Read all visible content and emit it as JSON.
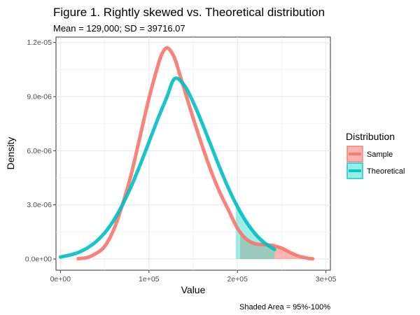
{
  "chart_data": {
    "type": "line",
    "title": "Figure 1. Rightly skewed vs. Theoretical distribution",
    "subtitle": "Mean = 129,000; SD = 39716.07",
    "xlabel": "Value",
    "ylabel": "Density",
    "caption": "Shaded Area = 95%-100%",
    "xlim": [
      -5000,
      305000
    ],
    "ylim": [
      -6.2e-07,
      1.23e-05
    ],
    "x_ticks": [
      0,
      100000,
      200000,
      300000
    ],
    "x_tick_labels": [
      "0e+00",
      "1e+05",
      "2e+05",
      "3e+05"
    ],
    "y_ticks": [
      0,
      3e-06,
      6e-06,
      9e-06,
      1.2e-05
    ],
    "y_tick_labels": [
      "0.0e+00",
      "3.0e-06",
      "6.0e-06",
      "9.0e-06",
      "1.2e-05"
    ],
    "grid": true,
    "legend": {
      "title": "Distribution",
      "placement": "right",
      "entries": [
        "Sample",
        "Theoretical"
      ]
    },
    "series": [
      {
        "name": "Sample",
        "color": "#f8766d",
        "x": [
          20000,
          30000,
          40000,
          50000,
          60000,
          70000,
          80000,
          90000,
          100000,
          110000,
          115000,
          120000,
          125000,
          130000,
          135000,
          140000,
          150000,
          160000,
          170000,
          180000,
          190000,
          200000,
          210000,
          220000,
          230000,
          240000,
          250000,
          260000,
          270000,
          280000,
          285000
        ],
        "y": [
          2e-08,
          8e-08,
          3e-07,
          7e-07,
          1.6e-06,
          3e-06,
          4.7e-06,
          6.8e-06,
          8.9e-06,
          1.07e-05,
          1.14e-05,
          1.17e-05,
          1.15e-05,
          1.1e-05,
          1.02e-05,
          9.4e-06,
          7.8e-06,
          6.3e-06,
          4.9e-06,
          3.7e-06,
          2.7e-06,
          1.7e-06,
          1.1e-06,
          8.5e-07,
          8e-07,
          7.5e-07,
          6e-07,
          3.5e-07,
          1.5e-07,
          4e-08,
          1e-08
        ]
      },
      {
        "name": "Theoretical",
        "color": "#00bfc4",
        "x": [
          0,
          10000,
          20000,
          30000,
          40000,
          50000,
          60000,
          70000,
          80000,
          90000,
          100000,
          110000,
          120000,
          129000,
          140000,
          150000,
          160000,
          170000,
          180000,
          190000,
          200000,
          210000,
          220000,
          230000,
          242000
        ],
        "y": [
          1.1e-07,
          2.1e-07,
          3.6e-07,
          6e-07,
          9.5e-07,
          1.45e-06,
          2.13e-06,
          3e-06,
          4.03e-06,
          5.21e-06,
          6.48e-06,
          7.76e-06,
          8.94e-06,
          1e-05,
          9.62e-06,
          8.69e-06,
          7.54e-06,
          6.3e-06,
          5.06e-06,
          3.9e-06,
          2.9e-06,
          2.06e-06,
          1.4e-06,
          9.2e-07,
          5.3e-07
        ]
      }
    ],
    "shaded_area": {
      "sample": {
        "x": [
          203000,
          210000,
          220000,
          230000,
          240000,
          245000,
          250000,
          260000,
          270000,
          280000,
          285000
        ],
        "y": [
          1.55e-06,
          1.1e-06,
          8.5e-07,
          8e-07,
          7.5e-07,
          7e-07,
          6e-07,
          3.5e-07,
          1.5e-07,
          4e-08,
          1e-08
        ]
      },
      "theoretical": {
        "x": [
          198000,
          205000,
          210000,
          220000,
          230000,
          242000
        ],
        "y": [
          3.3e-06,
          2.45e-06,
          2.06e-06,
          1.4e-06,
          9.2e-07,
          5.3e-07
        ]
      }
    }
  }
}
